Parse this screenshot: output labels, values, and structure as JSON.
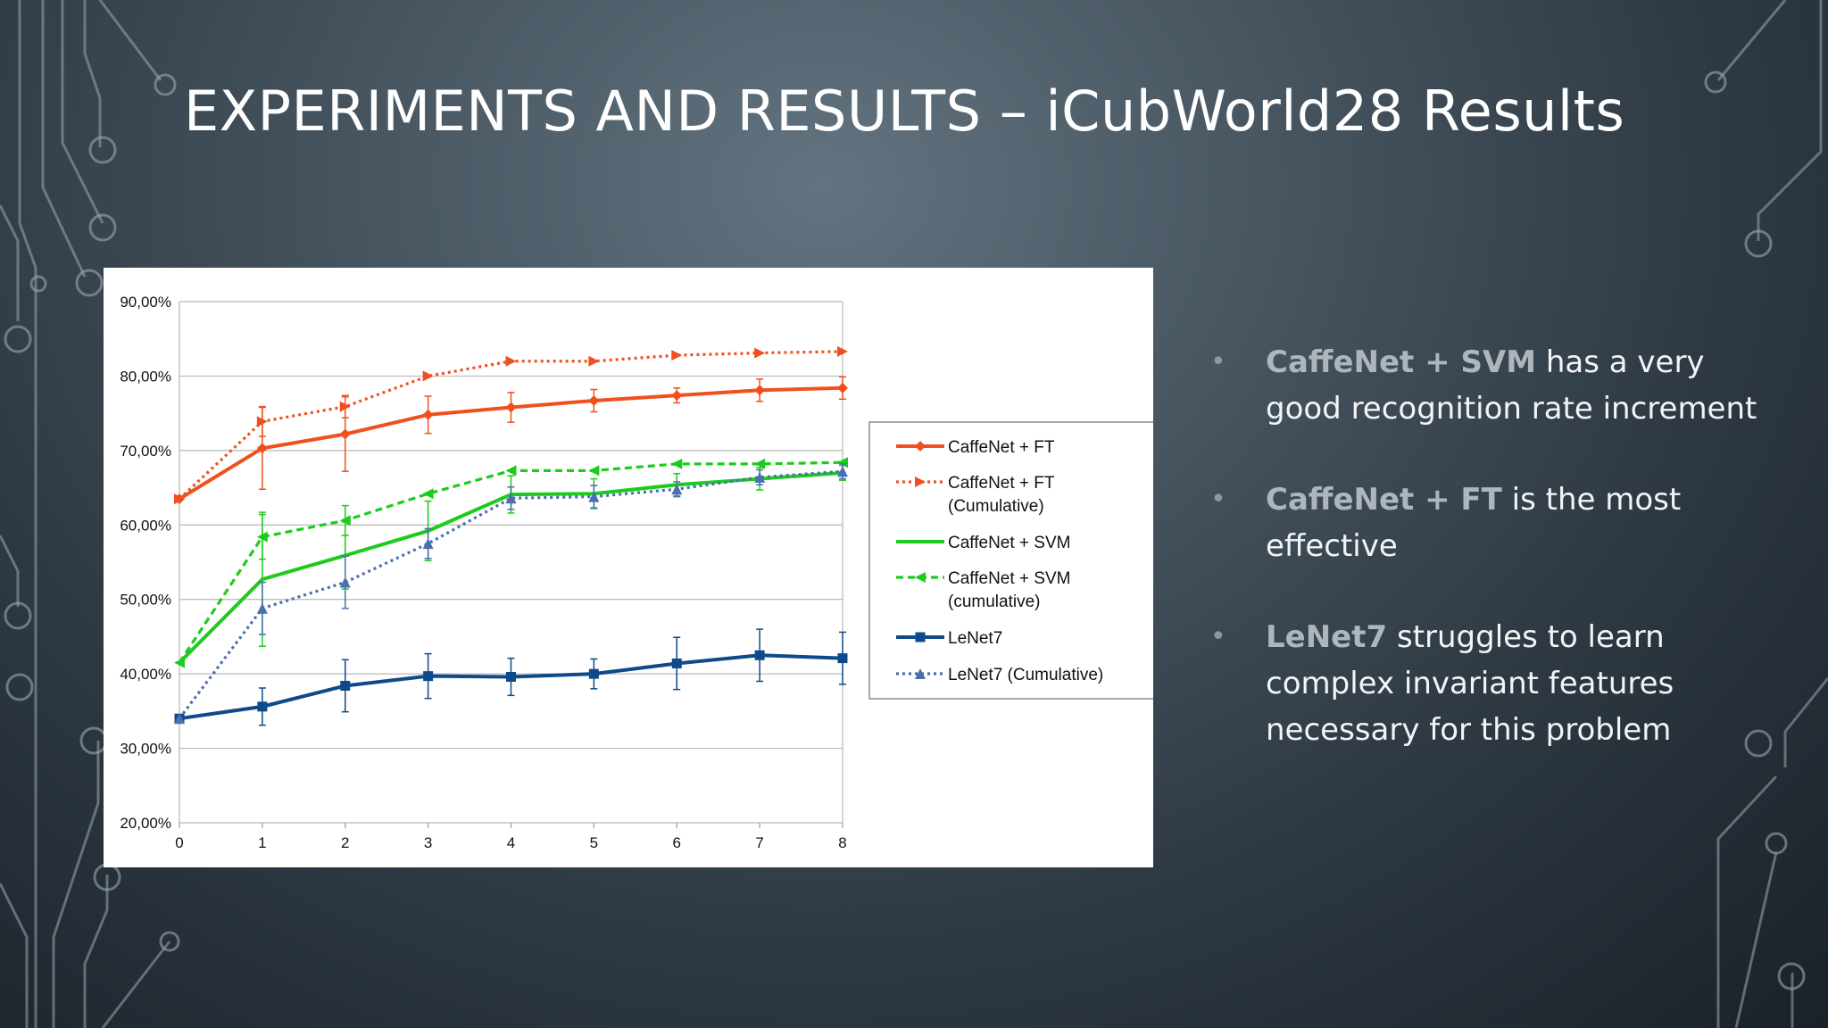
{
  "slide": {
    "title": "EXPERIMENTS AND RESULTS – iCubWorld28 Results"
  },
  "bullets": [
    {
      "strong": "CaffeNet + SVM",
      "text": " has a very good recognition rate increment"
    },
    {
      "strong": "CaffeNet + FT",
      "text": " is the most effective"
    },
    {
      "strong": "LeNet7",
      "text": " struggles to learn complex invariant features necessary for this problem"
    }
  ],
  "colors": {
    "orange": "#f0501e",
    "green": "#1ccc1c",
    "blue": "#0e4a8a",
    "blue_dotted": "#4a6fb0"
  },
  "chart_data": {
    "type": "line",
    "title": "",
    "xlabel": "",
    "ylabel": "",
    "x": [
      0,
      1,
      2,
      3,
      4,
      5,
      6,
      7,
      8
    ],
    "xlim": [
      0,
      8
    ],
    "ylim": [
      0.2,
      0.9
    ],
    "x_ticks": [
      "0",
      "1",
      "2",
      "3",
      "4",
      "5",
      "6",
      "7",
      "8"
    ],
    "y_ticks": [
      "20,00%",
      "30,00%",
      "40,00%",
      "50,00%",
      "60,00%",
      "70,00%",
      "80,00%",
      "90,00%"
    ],
    "y_tick_values": [
      0.2,
      0.3,
      0.4,
      0.5,
      0.6,
      0.7,
      0.8,
      0.9
    ],
    "grid": true,
    "legend_position": "right",
    "series": [
      {
        "name": "CaffeNet + FT",
        "color": "#f0501e",
        "style": "solid",
        "marker": "diamond",
        "values": [
          0.635,
          0.703,
          0.722,
          0.748,
          0.758,
          0.767,
          0.774,
          0.781,
          0.784
        ],
        "error": [
          0,
          0.055,
          0.05,
          0.025,
          0.02,
          0.015,
          0.01,
          0.015,
          0.015
        ]
      },
      {
        "name": "CaffeNet + FT (Cumulative)",
        "color": "#f0501e",
        "style": "dotted",
        "marker": "triangle-right",
        "values": [
          0.635,
          0.739,
          0.759,
          0.8,
          0.82,
          0.82,
          0.828,
          0.831,
          0.833
        ],
        "error": [
          0,
          0.02,
          0.015,
          0,
          0,
          0,
          0,
          0,
          0
        ]
      },
      {
        "name": "CaffeNet + SVM",
        "color": "#1ccc1c",
        "style": "solid",
        "marker": "none",
        "values": [
          0.415,
          0.527,
          0.559,
          0.592,
          0.641,
          0.642,
          0.654,
          0.662,
          0.67
        ],
        "error": [
          0,
          0.09,
          0.045,
          0.04,
          0.025,
          0.02,
          0.015,
          0.015,
          0.01
        ]
      },
      {
        "name": "CaffeNet + SVM (cumulative)",
        "color": "#1ccc1c",
        "style": "dashed",
        "marker": "triangle-left",
        "values": [
          0.415,
          0.584,
          0.606,
          0.642,
          0.673,
          0.673,
          0.682,
          0.682,
          0.684
        ],
        "error": [
          0,
          0.03,
          0.02,
          0,
          0,
          0,
          0,
          0,
          0
        ]
      },
      {
        "name": "LeNet7",
        "color": "#0e4a8a",
        "style": "solid",
        "marker": "square",
        "values": [
          0.34,
          0.356,
          0.384,
          0.397,
          0.396,
          0.4,
          0.414,
          0.425,
          0.421
        ],
        "error": [
          0,
          0.025,
          0.035,
          0.03,
          0.025,
          0.02,
          0.035,
          0.035,
          0.035
        ]
      },
      {
        "name": "LeNet7 (Cumulative)",
        "color": "#4a6fb0",
        "style": "dotted",
        "marker": "triangle-up",
        "values": [
          0.34,
          0.488,
          0.523,
          0.575,
          0.636,
          0.638,
          0.648,
          0.664,
          0.672
        ],
        "error": [
          0,
          0.035,
          0.035,
          0.02,
          0.015,
          0.015,
          0.01,
          0.01,
          0.01
        ]
      }
    ],
    "legend": [
      {
        "lines": [
          "CaffeNet + FT"
        ],
        "series": 0
      },
      {
        "lines": [
          "CaffeNet + FT",
          "(Cumulative)"
        ],
        "series": 1
      },
      {
        "lines": [
          "CaffeNet + SVM"
        ],
        "series": 2
      },
      {
        "lines": [
          "CaffeNet + SVM",
          "(cumulative)"
        ],
        "series": 3
      },
      {
        "lines": [
          "LeNet7"
        ],
        "series": 4
      },
      {
        "lines": [
          "LeNet7 (Cumulative)"
        ],
        "series": 5
      }
    ]
  }
}
